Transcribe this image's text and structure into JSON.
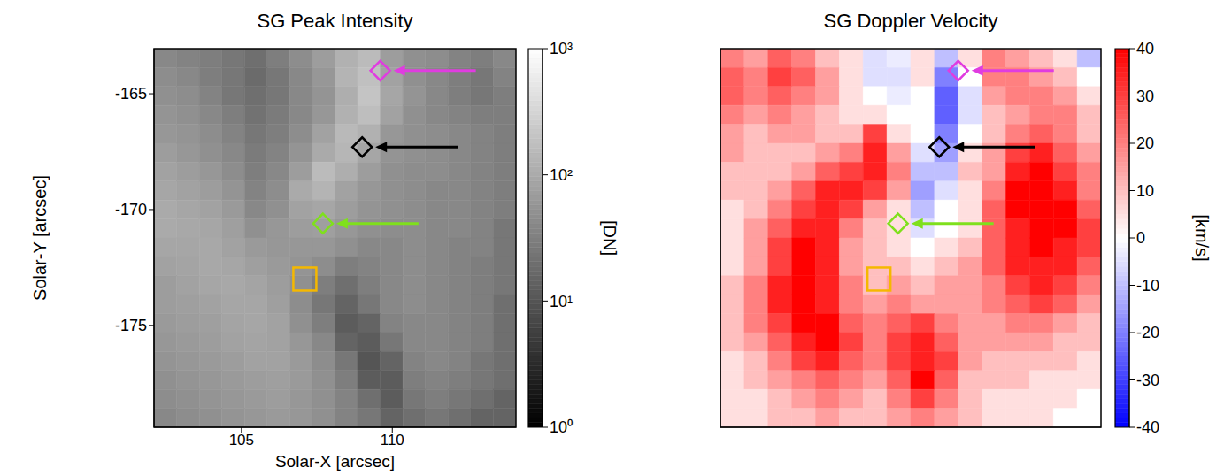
{
  "chart_data": [
    {
      "type": "heatmap",
      "title": "SG Peak Intensity",
      "x_label": "Solar-X [arcsec]",
      "y_label": "Solar-Y [arcsec]",
      "xlim": [
        102.1,
        114.1
      ],
      "ylim": [
        -179.4,
        -163.05
      ],
      "xticks": [
        105,
        110
      ],
      "yticks": [
        -175,
        -170,
        -165
      ],
      "cells": [
        [
          40,
          35,
          30,
          25,
          20,
          30,
          45,
          70,
          120,
          160,
          70,
          50,
          45,
          35,
          30,
          40
        ],
        [
          45,
          40,
          30,
          25,
          18,
          25,
          40,
          60,
          130,
          180,
          80,
          50,
          40,
          30,
          25,
          35
        ],
        [
          50,
          45,
          35,
          25,
          20,
          25,
          40,
          55,
          110,
          200,
          90,
          55,
          40,
          30,
          25,
          30
        ],
        [
          55,
          50,
          40,
          30,
          22,
          28,
          40,
          60,
          120,
          170,
          80,
          50,
          40,
          35,
          30,
          30
        ],
        [
          60,
          55,
          45,
          35,
          25,
          30,
          45,
          80,
          150,
          120,
          60,
          50,
          45,
          40,
          35,
          30
        ],
        [
          70,
          60,
          50,
          40,
          28,
          35,
          55,
          100,
          140,
          90,
          55,
          50,
          45,
          40,
          35,
          30
        ],
        [
          80,
          70,
          60,
          45,
          30,
          40,
          70,
          160,
          110,
          70,
          50,
          45,
          45,
          40,
          35,
          30
        ],
        [
          90,
          80,
          70,
          55,
          35,
          45,
          100,
          130,
          80,
          60,
          50,
          45,
          40,
          40,
          35,
          30
        ],
        [
          100,
          90,
          80,
          65,
          40,
          50,
          80,
          90,
          70,
          55,
          50,
          45,
          40,
          40,
          35,
          30
        ],
        [
          100,
          95,
          90,
          75,
          50,
          60,
          70,
          75,
          60,
          50,
          45,
          45,
          40,
          40,
          35,
          25
        ],
        [
          90,
          90,
          95,
          80,
          65,
          60,
          60,
          60,
          50,
          40,
          40,
          45,
          40,
          35,
          35,
          25
        ],
        [
          80,
          85,
          95,
          90,
          75,
          65,
          55,
          45,
          30,
          35,
          40,
          45,
          40,
          35,
          30,
          25
        ],
        [
          70,
          80,
          90,
          95,
          85,
          70,
          50,
          30,
          20,
          30,
          40,
          45,
          40,
          35,
          30,
          25
        ],
        [
          70,
          75,
          80,
          90,
          90,
          75,
          45,
          25,
          15,
          25,
          40,
          45,
          40,
          35,
          30,
          20
        ],
        [
          65,
          70,
          75,
          85,
          90,
          80,
          50,
          30,
          12,
          15,
          35,
          40,
          40,
          35,
          30,
          20
        ],
        [
          60,
          65,
          70,
          80,
          85,
          80,
          60,
          40,
          15,
          12,
          25,
          40,
          40,
          35,
          30,
          20
        ],
        [
          55,
          60,
          65,
          70,
          80,
          80,
          65,
          45,
          25,
          10,
          15,
          35,
          40,
          35,
          25,
          20
        ],
        [
          50,
          55,
          60,
          65,
          70,
          75,
          65,
          50,
          30,
          12,
          12,
          30,
          35,
          30,
          25,
          20
        ],
        [
          45,
          50,
          55,
          60,
          65,
          70,
          60,
          50,
          35,
          20,
          12,
          25,
          30,
          25,
          20,
          15
        ],
        [
          40,
          45,
          50,
          55,
          60,
          65,
          60,
          50,
          35,
          25,
          15,
          20,
          25,
          20,
          15,
          15
        ]
      ],
      "colorbar": {
        "label": "[DN]",
        "range": [
          1,
          1000
        ],
        "log": true,
        "colors": [
          "#000000",
          "#ffffff"
        ],
        "ticks": [
          {
            "value": 1,
            "label": "10⁰"
          },
          {
            "value": 10,
            "label": "10¹"
          },
          {
            "value": 100,
            "label": "10²"
          },
          {
            "value": 1000,
            "label": "10³"
          }
        ]
      },
      "markers": [
        {
          "x": 109.6,
          "y": -164.0,
          "color": "#e03ce0",
          "marker": "diamond"
        },
        {
          "x": 109.0,
          "y": -167.3,
          "color": "#000000",
          "marker": "diamond"
        },
        {
          "x": 107.7,
          "y": -170.6,
          "color": "#7fe01c",
          "marker": "diamond"
        },
        {
          "x": 107.1,
          "y": -173.0,
          "color": "#f5b800",
          "marker": "square"
        }
      ]
    },
    {
      "type": "heatmap",
      "title": "SG Doppler Velocity",
      "tick_labels": false,
      "xlim": [
        102.1,
        114.1
      ],
      "ylim": [
        -179.4,
        -163.05
      ],
      "xticks": [
        105,
        110
      ],
      "yticks": [
        -175,
        -170,
        -165
      ],
      "cells": [
        [
          20,
          15,
          25,
          20,
          10,
          5,
          -5,
          -3,
          5,
          -10,
          5,
          20,
          15,
          10,
          5,
          -10
        ],
        [
          25,
          20,
          30,
          25,
          15,
          5,
          -5,
          -5,
          5,
          -20,
          0,
          20,
          20,
          15,
          10,
          0
        ],
        [
          25,
          20,
          25,
          20,
          15,
          5,
          0,
          -3,
          0,
          -25,
          -5,
          15,
          20,
          20,
          15,
          5
        ],
        [
          20,
          15,
          20,
          15,
          10,
          5,
          5,
          0,
          0,
          -25,
          -5,
          10,
          15,
          20,
          20,
          10
        ],
        [
          15,
          10,
          15,
          15,
          10,
          10,
          30,
          5,
          0,
          -20,
          0,
          10,
          20,
          25,
          20,
          10
        ],
        [
          15,
          10,
          10,
          10,
          15,
          20,
          35,
          15,
          -5,
          -15,
          5,
          15,
          30,
          35,
          25,
          15
        ],
        [
          10,
          10,
          10,
          15,
          25,
          30,
          35,
          20,
          -10,
          -10,
          10,
          15,
          35,
          40,
          30,
          20
        ],
        [
          10,
          10,
          15,
          25,
          35,
          35,
          30,
          15,
          -15,
          -5,
          5,
          20,
          40,
          40,
          35,
          20
        ],
        [
          5,
          10,
          20,
          30,
          35,
          30,
          15,
          5,
          -10,
          0,
          5,
          25,
          40,
          40,
          40,
          25
        ],
        [
          5,
          15,
          25,
          35,
          35,
          20,
          10,
          5,
          -5,
          0,
          5,
          25,
          35,
          40,
          40,
          30
        ],
        [
          5,
          15,
          30,
          40,
          35,
          15,
          10,
          5,
          0,
          5,
          10,
          25,
          35,
          40,
          35,
          30
        ],
        [
          5,
          15,
          30,
          40,
          35,
          15,
          10,
          10,
          5,
          10,
          15,
          25,
          35,
          35,
          35,
          25
        ],
        [
          10,
          20,
          35,
          40,
          35,
          20,
          10,
          15,
          10,
          15,
          15,
          20,
          30,
          35,
          30,
          20
        ],
        [
          10,
          20,
          35,
          40,
          35,
          20,
          15,
          20,
          15,
          15,
          15,
          20,
          25,
          30,
          25,
          15
        ],
        [
          10,
          20,
          30,
          40,
          40,
          25,
          20,
          25,
          30,
          20,
          15,
          15,
          20,
          20,
          15,
          10
        ],
        [
          10,
          15,
          25,
          35,
          40,
          30,
          20,
          30,
          35,
          25,
          15,
          15,
          15,
          15,
          10,
          10
        ],
        [
          5,
          10,
          20,
          30,
          35,
          25,
          20,
          30,
          35,
          30,
          15,
          10,
          10,
          10,
          10,
          5
        ],
        [
          5,
          10,
          15,
          20,
          25,
          20,
          15,
          25,
          40,
          25,
          10,
          10,
          10,
          5,
          5,
          5
        ],
        [
          5,
          5,
          10,
          15,
          20,
          15,
          10,
          20,
          30,
          20,
          10,
          5,
          5,
          5,
          5,
          0
        ],
        [
          5,
          5,
          10,
          10,
          15,
          10,
          10,
          15,
          20,
          15,
          10,
          5,
          5,
          5,
          0,
          0
        ]
      ],
      "colorbar": {
        "label": "[km/s]",
        "range": [
          -40,
          40
        ],
        "colors": [
          "#0000ff",
          "#ffffff",
          "#ff0000"
        ],
        "ticks": [
          -40,
          -30,
          -20,
          -10,
          0,
          10,
          20,
          30,
          40
        ]
      },
      "markers": [
        {
          "x": 109.6,
          "y": -164.0,
          "color": "#e03ce0",
          "marker": "diamond"
        },
        {
          "x": 109.0,
          "y": -167.3,
          "color": "#000000",
          "marker": "diamond"
        },
        {
          "x": 107.7,
          "y": -170.6,
          "color": "#7fe01c",
          "marker": "diamond"
        },
        {
          "x": 107.1,
          "y": -173.0,
          "color": "#f5b800",
          "marker": "square"
        }
      ]
    }
  ]
}
